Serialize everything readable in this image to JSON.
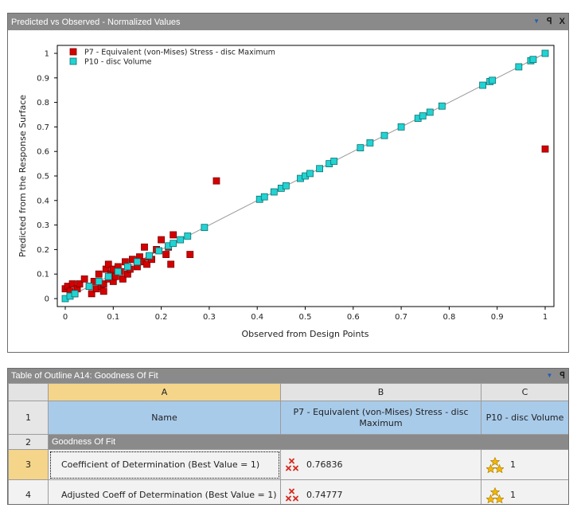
{
  "chart_panel": {
    "title": "Predicted vs Observed - Normalized Values",
    "controls": {
      "dropdown": "▼",
      "pin": "ꟼ",
      "close": "X"
    }
  },
  "chart_data": {
    "type": "scatter",
    "xlabel": "Observed from Design Points",
    "ylabel": "Predicted from the Response Surface",
    "xlim": [
      0,
      1
    ],
    "ylim": [
      0,
      1
    ],
    "xticks": [
      "0",
      "0.1",
      "0.2",
      "0.3",
      "0.4",
      "0.5",
      "0.6",
      "0.7",
      "0.8",
      "0.9",
      "1"
    ],
    "yticks": [
      "0",
      "0.1",
      "0.2",
      "0.3",
      "0.4",
      "0.5",
      "0.6",
      "0.7",
      "0.8",
      "0.9",
      "1"
    ],
    "reference_line": {
      "x": [
        0,
        1
      ],
      "y": [
        0,
        1
      ],
      "color": "#999999"
    },
    "grid": false,
    "legend_position": "top-left",
    "series": [
      {
        "name": "P7 - Equivalent (von-Mises) Stress - disc Maximum",
        "color": "#d40000",
        "x": [
          0.0,
          0.005,
          0.01,
          0.015,
          0.02,
          0.025,
          0.03,
          0.04,
          0.05,
          0.055,
          0.06,
          0.065,
          0.07,
          0.075,
          0.08,
          0.08,
          0.085,
          0.09,
          0.09,
          0.095,
          0.1,
          0.1,
          0.105,
          0.11,
          0.115,
          0.12,
          0.125,
          0.13,
          0.135,
          0.14,
          0.15,
          0.155,
          0.16,
          0.165,
          0.17,
          0.175,
          0.18,
          0.19,
          0.2,
          0.21,
          0.215,
          0.22,
          0.225,
          0.26,
          0.315,
          1.0
        ],
        "y": [
          0.04,
          0.05,
          0.03,
          0.06,
          0.02,
          0.04,
          0.06,
          0.08,
          0.05,
          0.02,
          0.07,
          0.04,
          0.1,
          0.05,
          0.03,
          0.06,
          0.12,
          0.08,
          0.14,
          0.1,
          0.12,
          0.07,
          0.09,
          0.13,
          0.11,
          0.08,
          0.15,
          0.1,
          0.12,
          0.16,
          0.13,
          0.17,
          0.15,
          0.21,
          0.14,
          0.17,
          0.16,
          0.2,
          0.24,
          0.18,
          0.21,
          0.14,
          0.26,
          0.18,
          0.48,
          0.61
        ]
      },
      {
        "name": "P10 - disc Volume",
        "color": "#22d3d3",
        "x": [
          0.0,
          0.01,
          0.02,
          0.05,
          0.07,
          0.09,
          0.11,
          0.13,
          0.15,
          0.175,
          0.195,
          0.215,
          0.225,
          0.24,
          0.255,
          0.29,
          0.405,
          0.415,
          0.435,
          0.45,
          0.46,
          0.49,
          0.5,
          0.51,
          0.53,
          0.55,
          0.56,
          0.615,
          0.635,
          0.665,
          0.7,
          0.735,
          0.745,
          0.76,
          0.785,
          0.87,
          0.885,
          0.89,
          0.945,
          0.97,
          0.975,
          1.0
        ],
        "y": [
          0.0,
          0.01,
          0.02,
          0.05,
          0.07,
          0.09,
          0.11,
          0.13,
          0.15,
          0.175,
          0.195,
          0.215,
          0.225,
          0.24,
          0.255,
          0.29,
          0.405,
          0.415,
          0.435,
          0.45,
          0.46,
          0.49,
          0.5,
          0.51,
          0.53,
          0.55,
          0.56,
          0.615,
          0.635,
          0.665,
          0.7,
          0.735,
          0.745,
          0.76,
          0.785,
          0.87,
          0.885,
          0.89,
          0.945,
          0.97,
          0.975,
          1.0
        ]
      }
    ]
  },
  "table_panel": {
    "title": "Table of Outline A14: Goodness Of Fit",
    "controls": {
      "dropdown": "▼",
      "pin": "ꟼ"
    },
    "column_letters": [
      "A",
      "B",
      "C"
    ],
    "row_numbers": [
      "1",
      "2",
      "3",
      "4"
    ],
    "header": {
      "name": "Name",
      "b": "P7 - Equivalent (von-Mises) Stress - disc Maximum",
      "c": "P10 - disc Volume"
    },
    "section_label": "Goodness Of Fit",
    "rows": [
      {
        "label": "Coefficient of Determination (Best Value = 1)",
        "b_value": "0.76836",
        "b_icon": "red-cross-rating-icon",
        "c_value": "1",
        "c_icon": "gold-stars-rating-icon"
      },
      {
        "label": "Adjusted Coeff of Determination (Best Value = 1)",
        "b_value": "0.74777",
        "b_icon": "red-cross-rating-icon",
        "c_value": "1",
        "c_icon": "gold-stars-rating-icon"
      }
    ]
  }
}
